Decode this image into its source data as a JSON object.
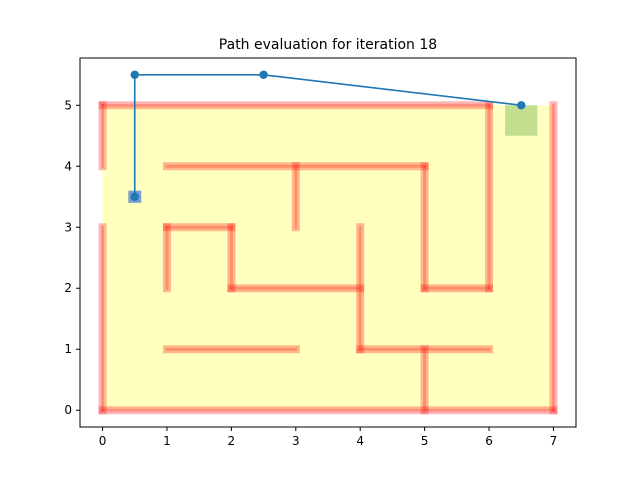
{
  "chart_data": {
    "type": "line",
    "title": "Path evaluation for iteration 18",
    "xlabel": "",
    "ylabel": "",
    "xlim": [
      -0.35,
      7.35
    ],
    "ylim": [
      -0.275,
      5.775
    ],
    "xticks": [
      0,
      1,
      2,
      3,
      4,
      5,
      6,
      7
    ],
    "yticks": [
      0,
      1,
      2,
      3,
      4,
      5
    ],
    "grid": false,
    "maze_area": {
      "x": [
        0,
        7
      ],
      "y": [
        0,
        5
      ],
      "color": "#ffffbf"
    },
    "walls": [
      [
        [
          0,
          0
        ],
        [
          7,
          0
        ]
      ],
      [
        [
          0,
          0
        ],
        [
          0,
          3
        ]
      ],
      [
        [
          0,
          4
        ],
        [
          0,
          5
        ]
      ],
      [
        [
          0,
          5
        ],
        [
          6,
          5
        ]
      ],
      [
        [
          7,
          0
        ],
        [
          7,
          5
        ]
      ],
      [
        [
          6,
          2
        ],
        [
          6,
          5
        ]
      ],
      [
        [
          1,
          4
        ],
        [
          5,
          4
        ]
      ],
      [
        [
          3,
          3
        ],
        [
          3,
          4
        ]
      ],
      [
        [
          5,
          2
        ],
        [
          5,
          4
        ]
      ],
      [
        [
          5,
          2
        ],
        [
          6,
          2
        ]
      ],
      [
        [
          1,
          2
        ],
        [
          1,
          3
        ]
      ],
      [
        [
          1,
          3
        ],
        [
          2,
          3
        ]
      ],
      [
        [
          2,
          2
        ],
        [
          2,
          3
        ]
      ],
      [
        [
          2,
          2
        ],
        [
          4,
          2
        ]
      ],
      [
        [
          4,
          1
        ],
        [
          4,
          3
        ]
      ],
      [
        [
          4,
          1
        ],
        [
          6,
          1
        ]
      ],
      [
        [
          5,
          0
        ],
        [
          5,
          1
        ]
      ],
      [
        [
          1,
          1
        ],
        [
          3,
          1
        ]
      ]
    ],
    "wall_color": "#ff0000",
    "start_cell": {
      "x": [
        0.4,
        0.6
      ],
      "y": [
        3.4,
        3.6
      ],
      "color": "#7b9ecf"
    },
    "goal_cell": {
      "x": [
        6.25,
        6.75
      ],
      "y": [
        4.5,
        5.0
      ],
      "color": "#c2df8f"
    },
    "series": [
      {
        "color": "#1f77b4",
        "x": [
          0.5,
          0.5,
          2.5,
          6.5
        ],
        "y": [
          3.5,
          5.5,
          5.5,
          5.0
        ]
      }
    ]
  }
}
